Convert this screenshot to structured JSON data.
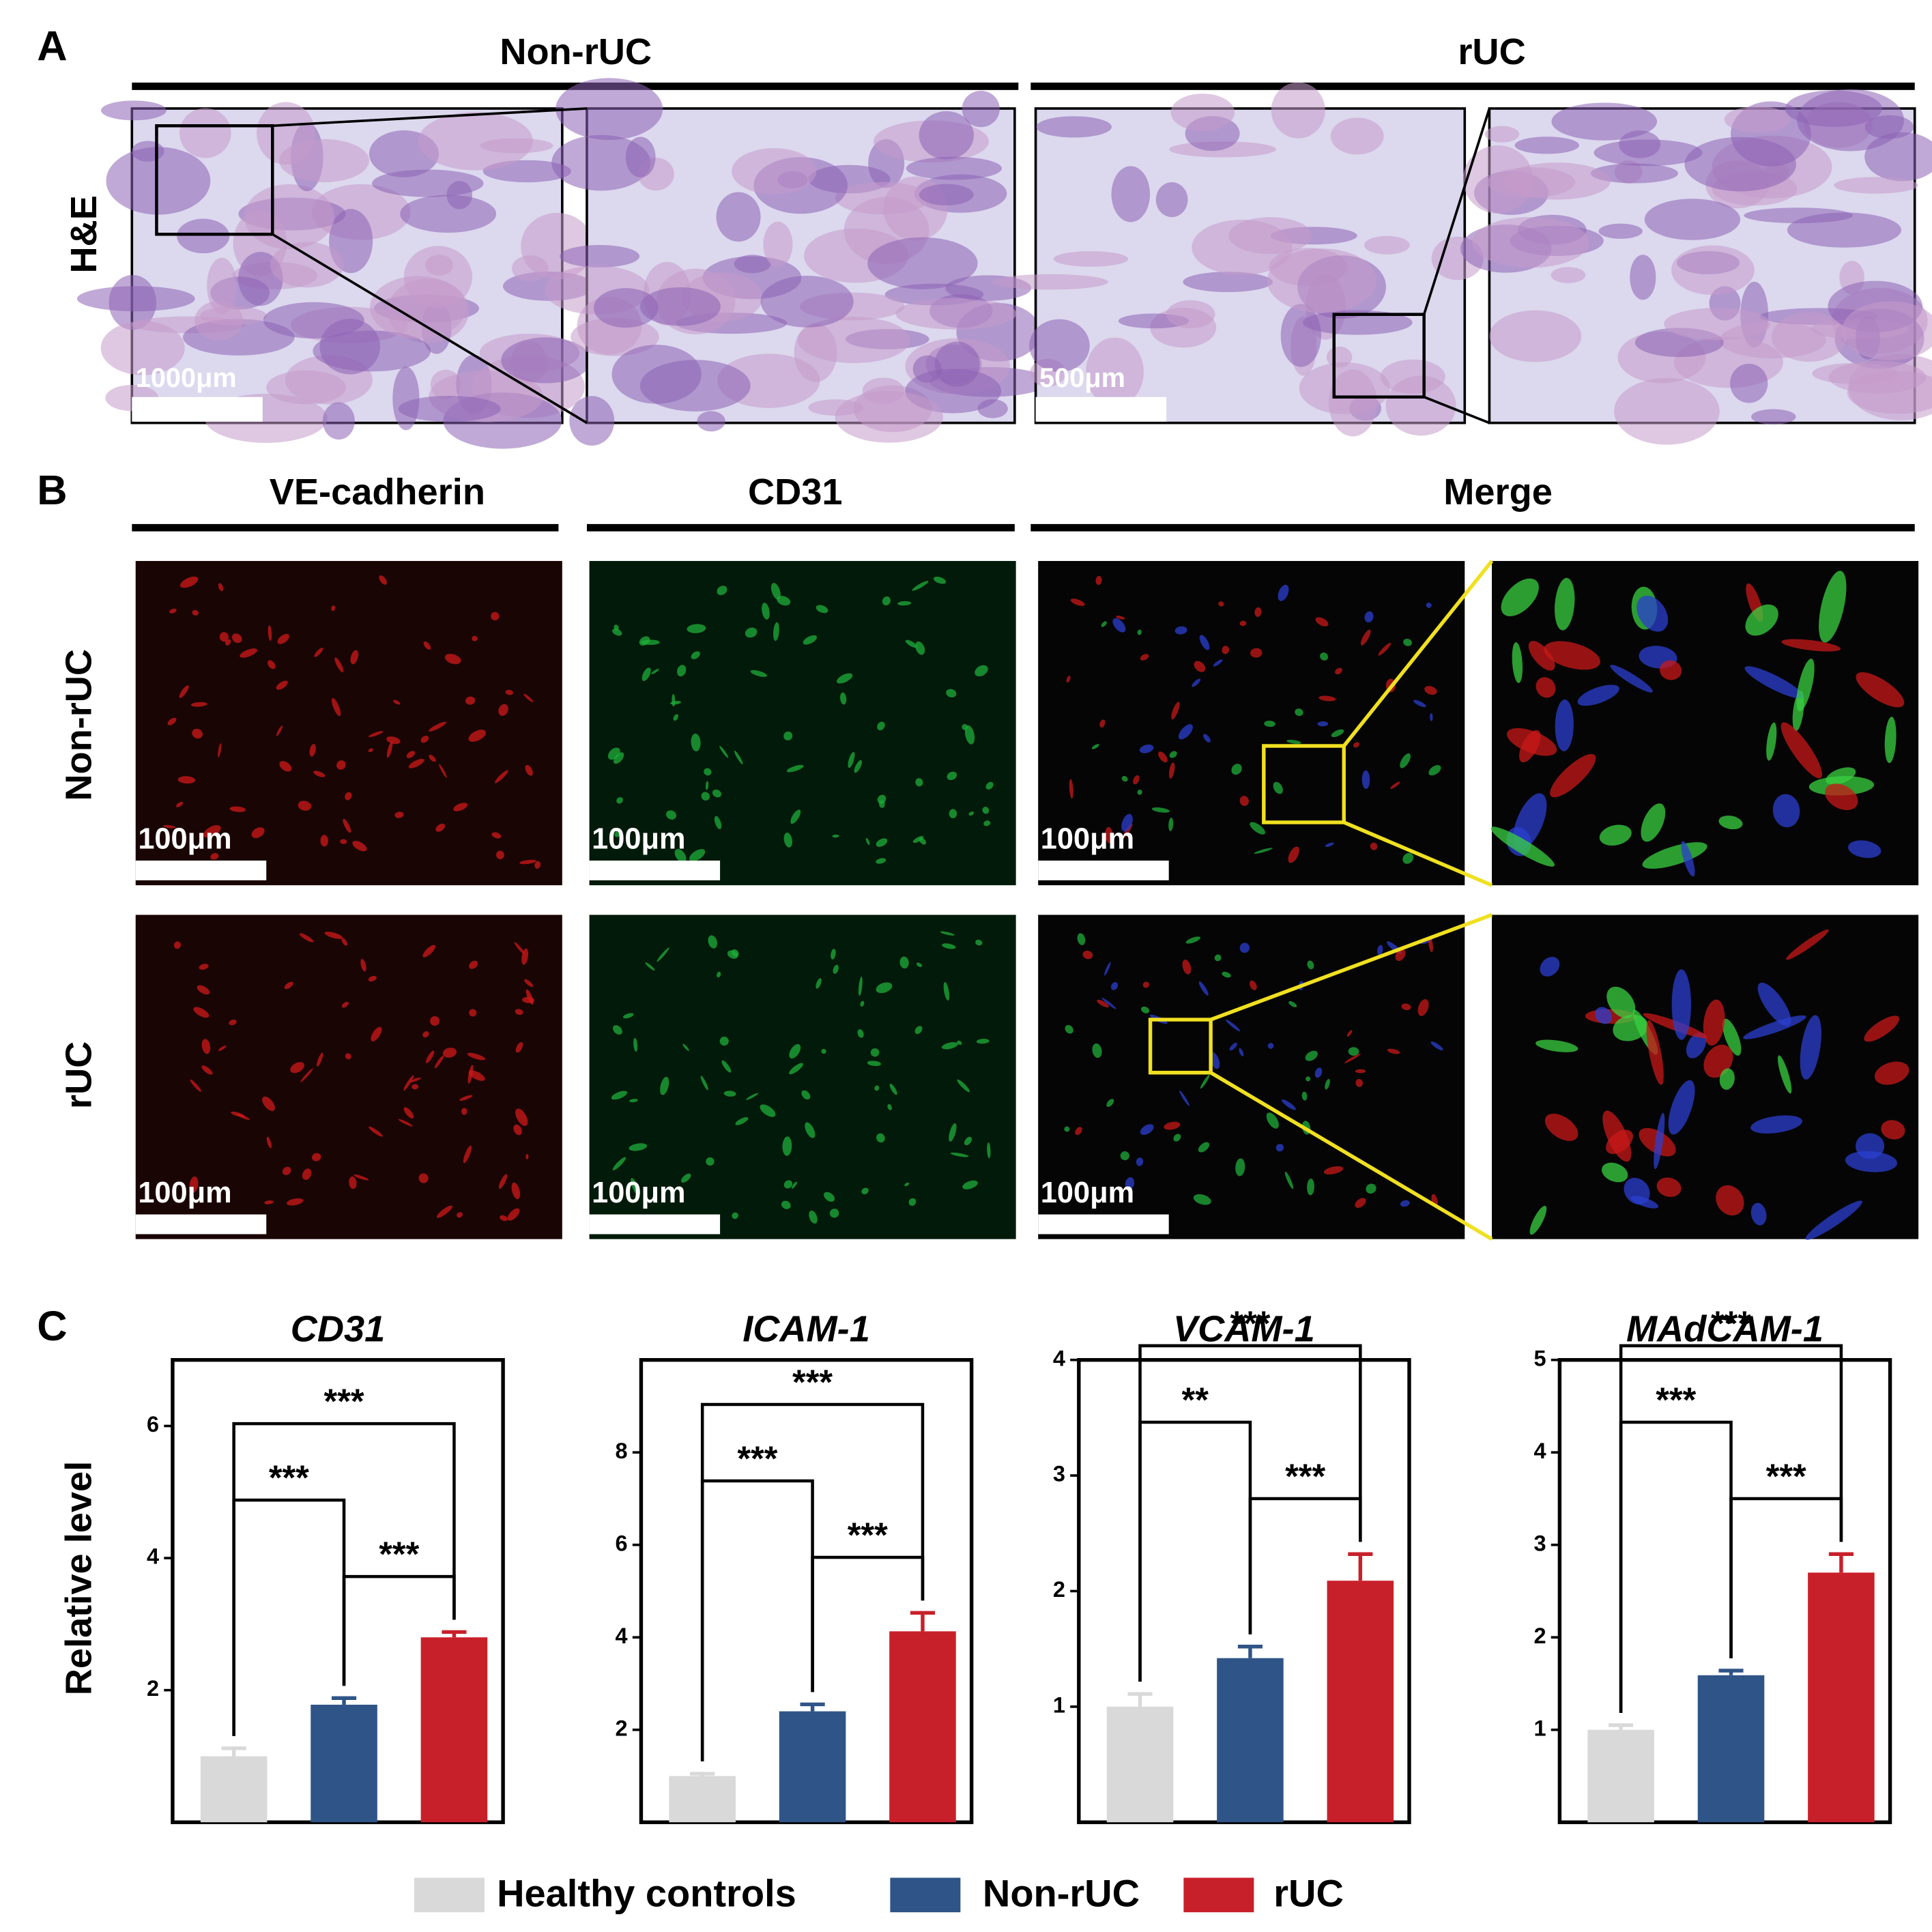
{
  "panel_labels": [
    "A",
    "B",
    "C"
  ],
  "panel_a": {
    "headers": [
      "Non-rUC",
      "rUC"
    ],
    "row_label": "H&E",
    "scale_bars": [
      "1000μm",
      "500μm"
    ]
  },
  "panel_b": {
    "headers": [
      "VE-cadherin",
      "CD31",
      "Merge"
    ],
    "row_labels": [
      "Non-rUC",
      "rUC"
    ],
    "scale_bar": "100μm"
  },
  "y_label": "Relative level",
  "legend": [
    {
      "name": "Healthy controls",
      "color": "#d9d9d9"
    },
    {
      "name": "Non-rUC",
      "color": "#2f5487"
    },
    {
      "name": "rUC",
      "color": "#c8202a"
    }
  ],
  "chart_data": [
    {
      "type": "bar",
      "title": "CD31",
      "values": [
        1.0,
        1.78,
        2.8
      ],
      "errors": [
        0.12,
        0.1,
        0.08
      ],
      "ylim": [
        0,
        7
      ],
      "yticks": [
        2,
        4,
        6
      ],
      "significance": [
        {
          "pair": [
            1,
            2
          ],
          "label": "***"
        },
        {
          "pair": [
            0,
            1
          ],
          "label": "***"
        },
        {
          "pair": [
            0,
            2
          ],
          "label": "***"
        }
      ]
    },
    {
      "type": "bar",
      "title": "ICAM-1",
      "values": [
        1.0,
        2.4,
        4.13
      ],
      "errors": [
        0.05,
        0.15,
        0.4
      ],
      "ylim": [
        0,
        10
      ],
      "yticks": [
        2,
        4,
        6,
        8
      ],
      "significance": [
        {
          "pair": [
            1,
            2
          ],
          "label": "***"
        },
        {
          "pair": [
            0,
            1
          ],
          "label": "***"
        },
        {
          "pair": [
            0,
            2
          ],
          "label": "***"
        }
      ]
    },
    {
      "type": "bar",
      "title": "VCAM-1",
      "values": [
        1.0,
        1.42,
        2.09
      ],
      "errors": [
        0.11,
        0.1,
        0.23
      ],
      "ylim": [
        0,
        4
      ],
      "yticks": [
        1,
        2,
        3,
        4
      ],
      "significance": [
        {
          "pair": [
            1,
            2
          ],
          "label": "***"
        },
        {
          "pair": [
            0,
            1
          ],
          "label": "**"
        },
        {
          "pair": [
            0,
            2
          ],
          "label": "***"
        }
      ]
    },
    {
      "type": "bar",
      "title": "MAdCAM-1",
      "values": [
        1.0,
        1.59,
        2.7
      ],
      "errors": [
        0.05,
        0.05,
        0.2
      ],
      "ylim": [
        0,
        5
      ],
      "yticks": [
        1,
        2,
        3,
        4,
        5
      ],
      "significance": [
        {
          "pair": [
            1,
            2
          ],
          "label": "***"
        },
        {
          "pair": [
            0,
            1
          ],
          "label": "***"
        },
        {
          "pair": [
            0,
            2
          ],
          "label": "***"
        }
      ]
    }
  ]
}
